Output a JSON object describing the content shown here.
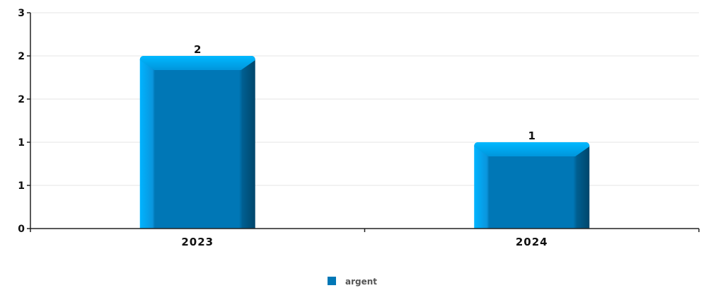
{
  "chart_data": {
    "type": "bar",
    "categories": [
      "2023",
      "2024"
    ],
    "series": [
      {
        "name": "argent",
        "values": [
          2,
          1
        ],
        "color": "#0077b6"
      }
    ],
    "data_labels": [
      "2",
      "1"
    ],
    "y_tick_labels": [
      "0",
      "1",
      "1",
      "2",
      "2",
      "3"
    ],
    "y_ticks": [
      0,
      0.5,
      1,
      1.5,
      2,
      2.5
    ],
    "ylim": [
      0,
      2.5
    ],
    "grid": true,
    "legend_position": "bottom-center",
    "colors": {
      "bar_face": "#0077b6",
      "bar_top": "#00a8f0",
      "bar_left": "#00b4ff",
      "bar_right": "#00527f",
      "grid": "#e6e6e6",
      "axis": "#222222"
    }
  }
}
